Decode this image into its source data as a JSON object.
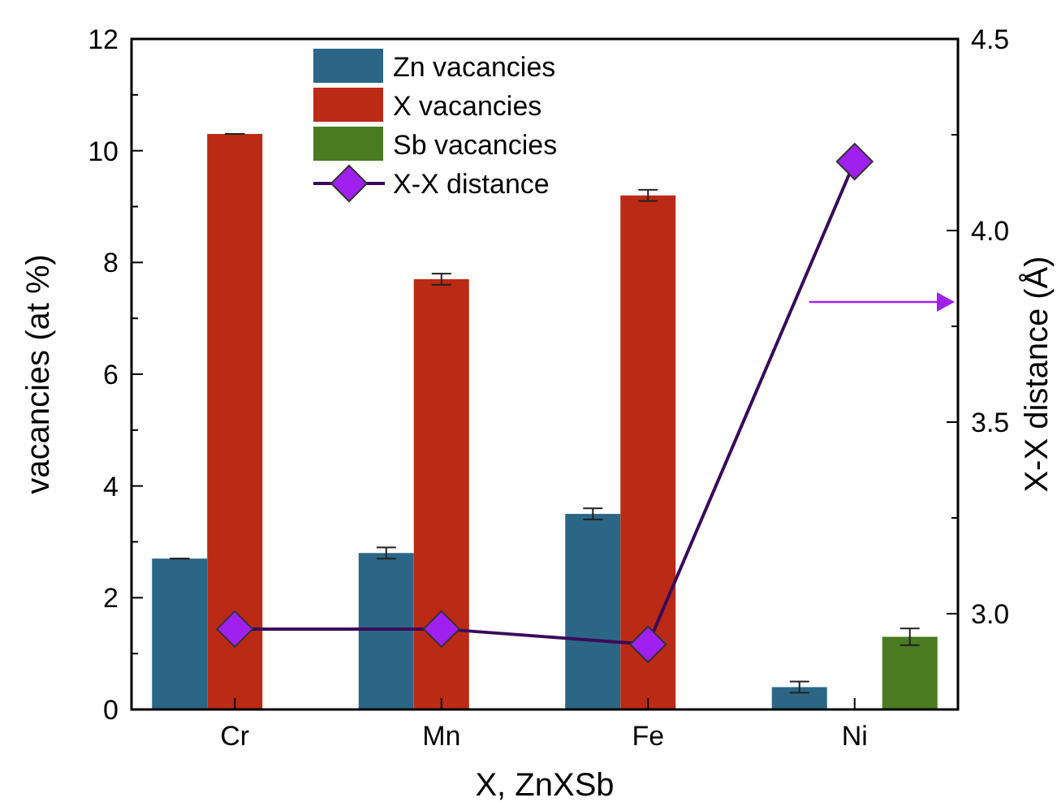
{
  "chart_data": {
    "type": "bar",
    "xlabel": "X, ZnXSb",
    "ylabel": "vacancies (at %)",
    "y2label": "X-X distance (Å)",
    "categories": [
      "Cr",
      "Mn",
      "Fe",
      "Ni"
    ],
    "series": [
      {
        "name": "Zn vacancies",
        "color": "#2b6686",
        "values": [
          2.7,
          2.8,
          3.5,
          0.4
        ],
        "errors": [
          0,
          0.1,
          0.1,
          0.1
        ]
      },
      {
        "name": "X vacancies",
        "color": "#bb2a14",
        "values": [
          10.3,
          7.7,
          9.2,
          null
        ],
        "errors": [
          0,
          0.1,
          0.1,
          null
        ]
      },
      {
        "name": "Sb vacancies",
        "color": "#4a7a22",
        "values": [
          null,
          null,
          null,
          1.3
        ],
        "errors": [
          null,
          null,
          null,
          0.15
        ]
      },
      {
        "name": "X-X distance",
        "type": "line",
        "axis": "y2",
        "color": "#a020f0",
        "values": [
          2.96,
          2.96,
          2.92,
          4.18
        ],
        "marker": "diamond",
        "line_style": "solid"
      }
    ],
    "ylim": [
      0,
      12
    ],
    "yticks": [
      0,
      {
        "value": 1,
        "label": null
      },
      2,
      {
        "value": 3,
        "label": null
      },
      4,
      {
        "value": 5,
        "label": null
      },
      6,
      {
        "value": 7,
        "label": null
      },
      8,
      {
        "value": 9,
        "label": null
      },
      10,
      {
        "value": 11,
        "label": null
      },
      12
    ],
    "y2lim": [
      2.75,
      4.5
    ],
    "y2ticks": [
      {
        "value": 3,
        "label": "3.0"
      },
      {
        "value": 3.25,
        "label": null
      },
      3.5,
      {
        "value": 3.75,
        "label": null
      },
      {
        "value": 4,
        "label": "4.0"
      },
      {
        "value": 4.25,
        "label": null
      },
      4.5
    ],
    "legend": "top left",
    "grid": false
  }
}
